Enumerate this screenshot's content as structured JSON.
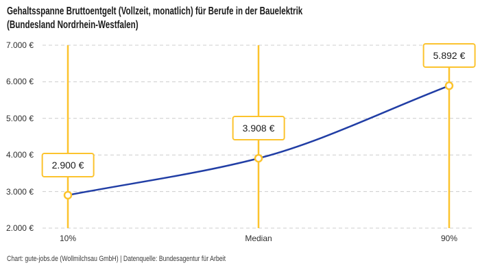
{
  "header": {
    "title_line1": "Gehaltsspanne Bruttoentgelt (Vollzeit, monatlich) für Berufe in der Bauelektrik",
    "title_line2": "(Bundesland Nordrhein-Westfalen)"
  },
  "footer": {
    "credit": "Chart: gute-jobs.de (Wollmilchsau GmbH) | Datenquelle: Bundesagentur für Arbeit"
  },
  "chart_data": {
    "type": "line",
    "title": "Gehaltsspanne Bruttoentgelt (Vollzeit, monatlich) für Berufe in der Bauelektrik (Bundesland Nordrhein-Westfalen)",
    "categories": [
      "10%",
      "Median",
      "90%"
    ],
    "values": [
      2900,
      3908,
      5892
    ],
    "point_labels": [
      "2.900 €",
      "3.908 €",
      "5.892 €"
    ],
    "ylim": [
      2000,
      7000
    ],
    "ytick_step": 1000,
    "ytick_labels": [
      "2.000 €",
      "3.000 €",
      "4.000 €",
      "5.000 €",
      "6.000 €",
      "7.000 €"
    ],
    "xlabel": "",
    "ylabel": "",
    "legend_position": "none",
    "grid": "horizontal-dashed",
    "colors": {
      "curve": "#213ea5",
      "marker_fill": "#ffffff",
      "marker_stroke": "#fcc32d",
      "percentile_line": "#fcc32d",
      "value_label_border": "#fcc32d",
      "value_label_bg": "#ffffff",
      "gridline": "#cccccc",
      "title_text": "#1a1a1a",
      "axis_text": "#2e2e2e",
      "footer_text": "#3a3a3a"
    }
  }
}
